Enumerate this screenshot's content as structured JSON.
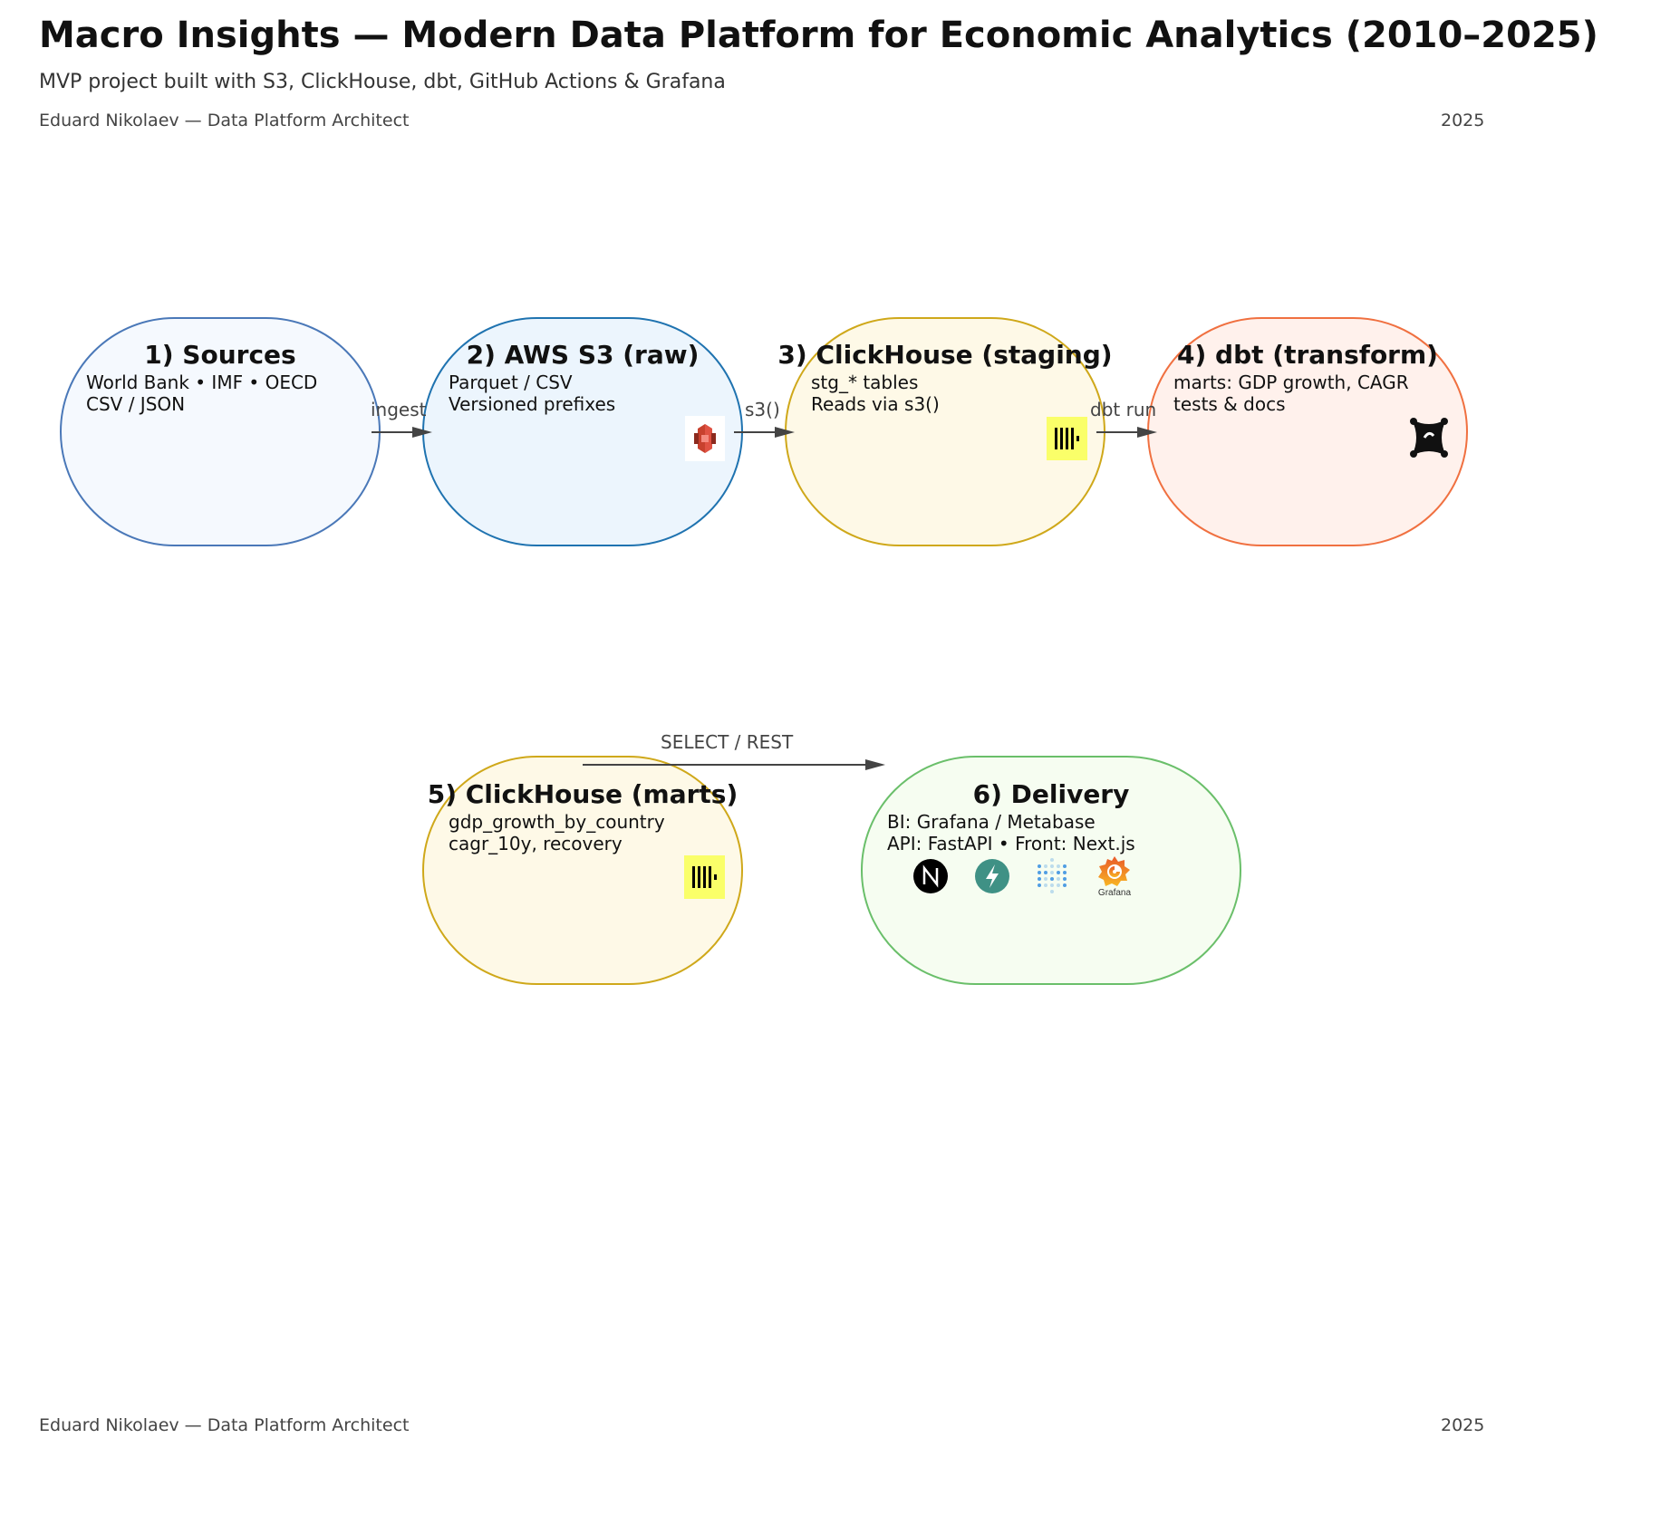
{
  "header": {
    "title": "Macro Insights — Modern Data Platform for Economic Analytics (2010–2025)",
    "subtitle": "MVP project built with S3, ClickHouse, dbt, GitHub Actions & Grafana",
    "author": "Eduard Nikolaev — Data Platform Architect",
    "year": "2025"
  },
  "footer": {
    "author": "Eduard Nikolaev — Data Platform Architect",
    "year": "2025"
  },
  "nodes": [
    {
      "title": "1) Sources",
      "lines": [
        "World Bank • IMF • OECD",
        "CSV / JSON"
      ],
      "fill": "#f5f9fe",
      "stroke": "#4a78b8"
    },
    {
      "title": "2) AWS S3 (raw)",
      "lines": [
        "Parquet / CSV",
        "Versioned prefixes"
      ],
      "fill": "#ecf5fd",
      "stroke": "#1f73b0",
      "icon": "aws-s3-icon"
    },
    {
      "title": "3) ClickHouse (staging)",
      "lines": [
        "stg_* tables",
        "Reads via s3()"
      ],
      "fill": "#fef9e7",
      "stroke": "#cfa81a",
      "icon": "clickhouse-icon"
    },
    {
      "title": "4) dbt (transform)",
      "lines": [
        "marts: GDP growth, CAGR",
        "tests & docs"
      ],
      "fill": "#fff1ec",
      "stroke": "#f07040",
      "icon": "dbt-icon"
    },
    {
      "title": "5) ClickHouse (marts)",
      "lines": [
        "gdp_growth_by_country",
        "cagr_10y, recovery"
      ],
      "fill": "#fef9e7",
      "stroke": "#cfa81a",
      "icon": "clickhouse-icon"
    },
    {
      "title": "6) Delivery",
      "lines": [
        "BI: Grafana / Metabase",
        "API: FastAPI • Front: Next.js"
      ],
      "fill": "#f6fdf1",
      "stroke": "#6abf6a",
      "icons": [
        "nextjs-icon",
        "fastapi-icon",
        "metabase-icon",
        "grafana-icon"
      ],
      "grafana_caption": "Grafana"
    }
  ],
  "edges": [
    {
      "label": "ingest",
      "from": "1) Sources",
      "to": "2) AWS S3 (raw)"
    },
    {
      "label": "s3()",
      "from": "2) AWS S3 (raw)",
      "to": "3) ClickHouse (staging)"
    },
    {
      "label": "dbt run",
      "from": "3) ClickHouse (staging)",
      "to": "4) dbt (transform)"
    },
    {
      "label": "SELECT / REST",
      "from": "5) ClickHouse (marts)",
      "to": "6) Delivery"
    }
  ]
}
